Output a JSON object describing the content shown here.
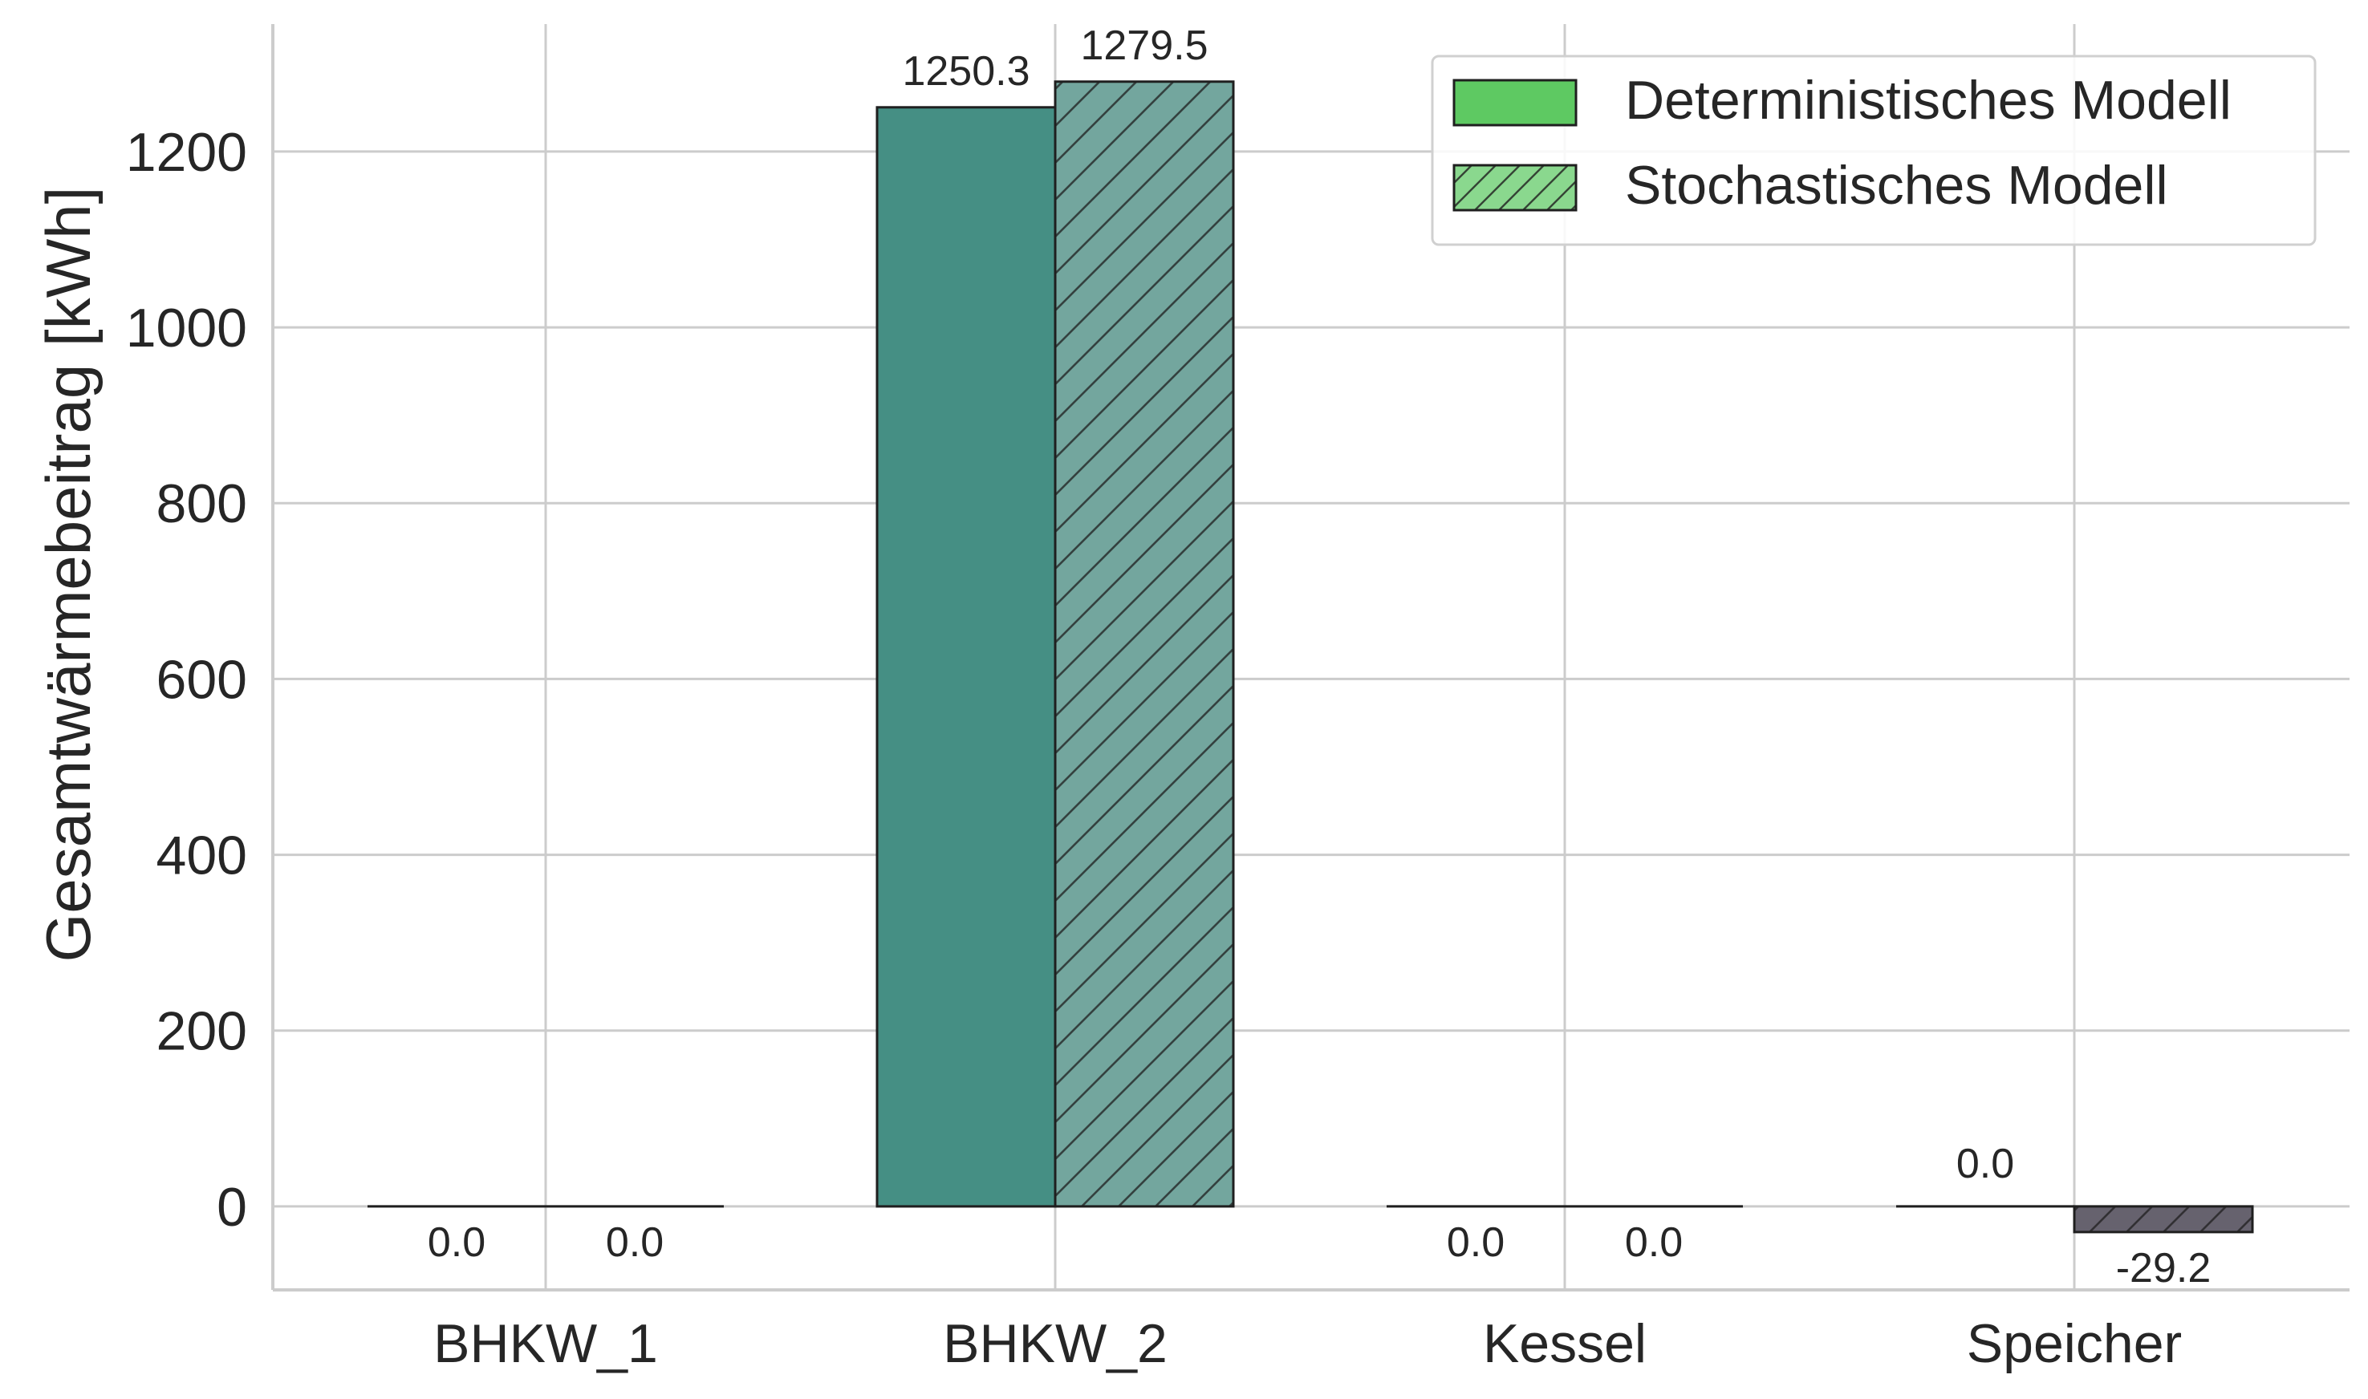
{
  "chart_data": {
    "type": "bar",
    "title": "",
    "xlabel": "",
    "ylabel": "Gesamtwärmebeitrag [kWh]",
    "categories": [
      "BHKW_1",
      "BHKW_2",
      "Kessel",
      "Speicher"
    ],
    "series": [
      {
        "name": "Deterministisches Modell",
        "values": [
          0.0,
          1250.3,
          0.0,
          0.0
        ],
        "value_labels": [
          "0.0",
          "1250.3",
          "0.0",
          "0.0"
        ],
        "hatch": false,
        "legend_color": "#5ec962"
      },
      {
        "name": "Stochastisches Modell",
        "values": [
          0.0,
          1279.5,
          0.0,
          -29.2
        ],
        "value_labels": [
          "0.0",
          "1279.5",
          "0.0",
          "-29.2"
        ],
        "hatch": true,
        "legend_color": "#8ad88e"
      }
    ],
    "bar_colors": {
      "BHKW_2_det": "#458f84",
      "BHKW_2_sto": "#73a69e",
      "Speicher_sto": "#66626e"
    },
    "ylim": [
      -95,
      1345
    ],
    "yticks": [
      0,
      200,
      400,
      600,
      800,
      1000,
      1200
    ],
    "ytick_labels": [
      "0",
      "200",
      "400",
      "600",
      "800",
      "1000",
      "1200"
    ],
    "grid": true,
    "legend_position": "top-right"
  }
}
